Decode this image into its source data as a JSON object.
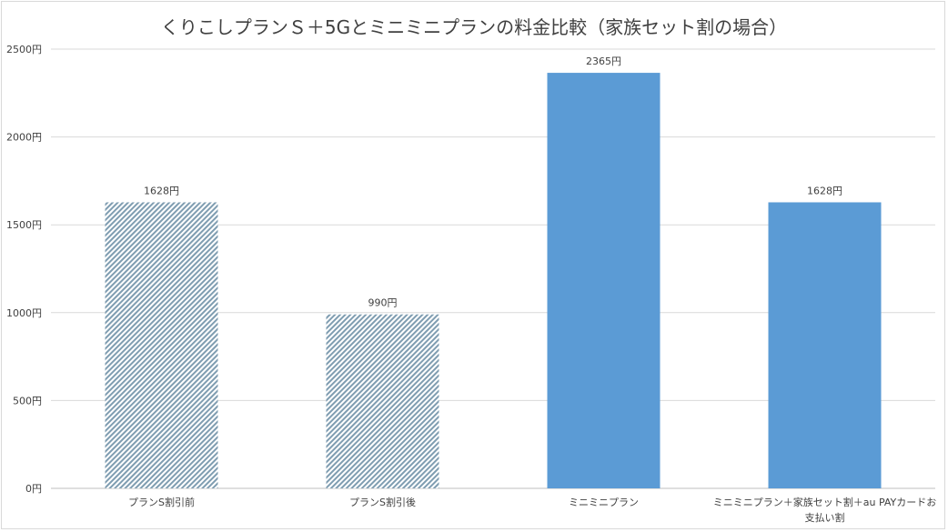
{
  "chart_data": {
    "type": "bar",
    "title": "くりこしプランＳ＋5Gとミニミニプランの料金比較（家族セット割の場合）",
    "categories": [
      "プランS割引前",
      "プランS割引後",
      "ミニミニプラン",
      "ミニミニプラン＋家族セット割＋au PAYカードお支払い割"
    ],
    "category_lines": [
      [
        "プランS割引前"
      ],
      [
        "プランS割引後"
      ],
      [
        "ミニミニプラン"
      ],
      [
        "ミニミニプラン＋家族セット割＋au PAYカードお",
        "支払い割"
      ]
    ],
    "values": [
      1628,
      990,
      2365,
      1628
    ],
    "data_labels": [
      "1628円",
      "990円",
      "2365円",
      "1628円"
    ],
    "bar_styles": [
      "hatched",
      "hatched",
      "solid",
      "solid"
    ],
    "xlabel": "",
    "ylabel": "",
    "ylim": [
      0,
      2500
    ],
    "yticks": [
      0,
      500,
      1000,
      1500,
      2000,
      2500
    ],
    "ytick_labels": [
      "0円",
      "500円",
      "1000円",
      "1500円",
      "2000円",
      "2500円"
    ],
    "grid": true,
    "legend": "none",
    "colors": {
      "solid_bar": "#5b9bd5",
      "hatch_stripe": "#7f9db1",
      "gridline": "#d9d9d9",
      "text": "#404040"
    }
  }
}
